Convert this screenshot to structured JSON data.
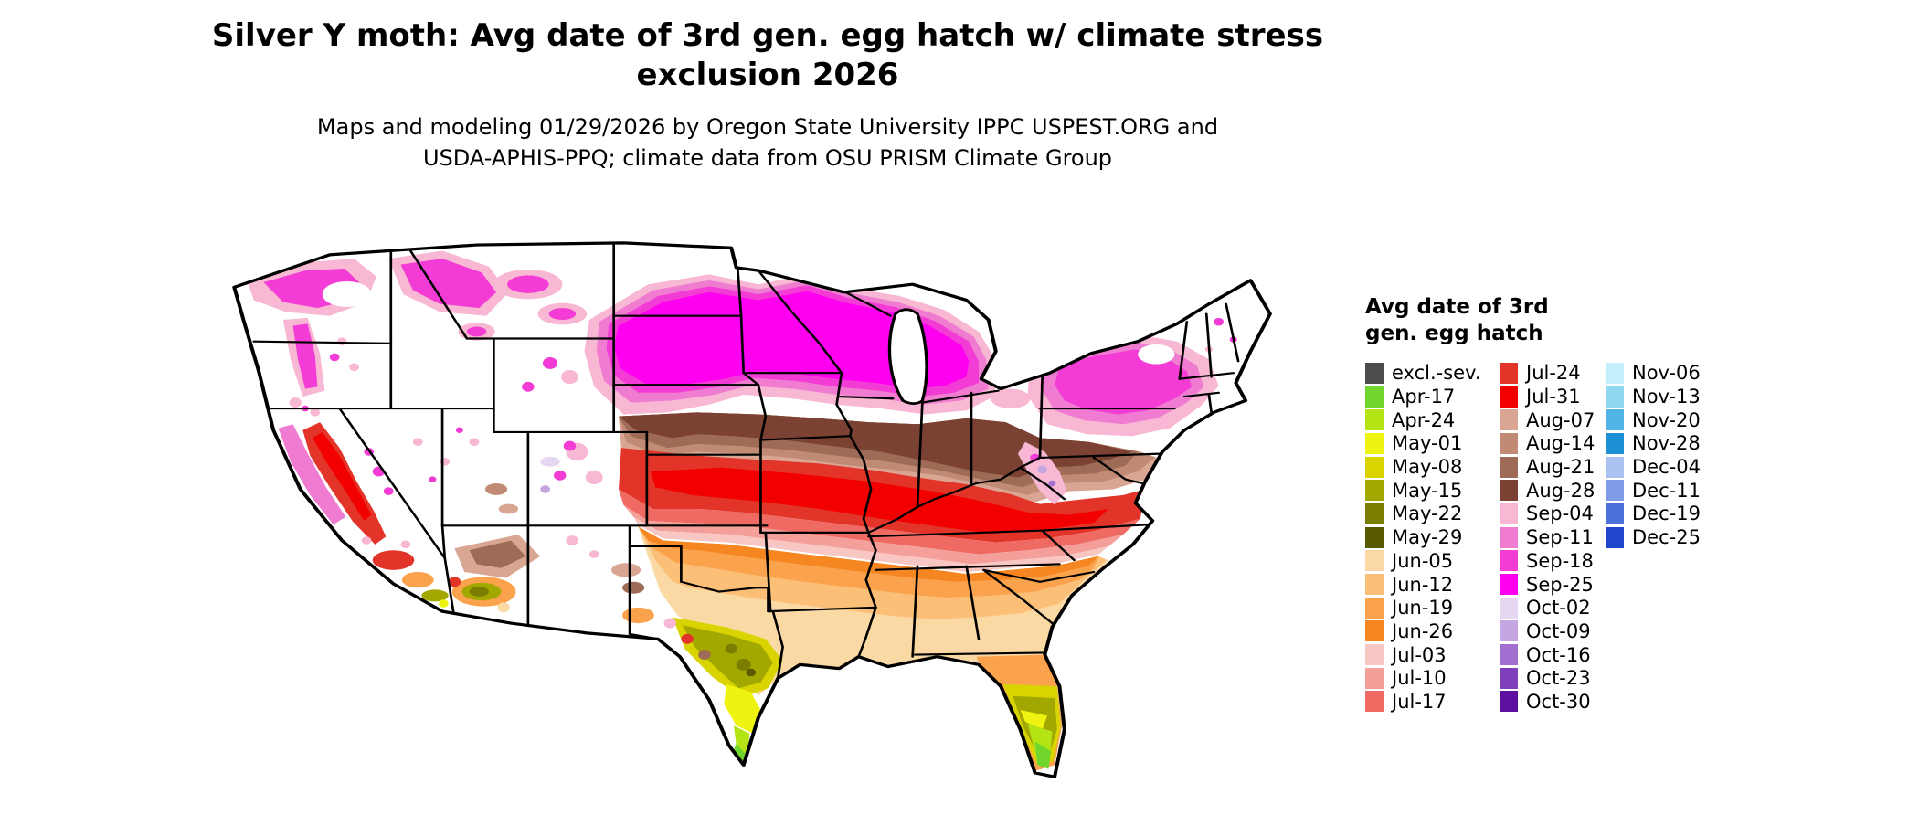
{
  "title": {
    "line1": "Silver Y moth: Avg date of 3rd gen. egg hatch w/ climate stress",
    "line2": "exclusion 2026"
  },
  "subtitle": {
    "line1": "Maps and modeling 01/29/2026 by Oregon State University IPPC USPEST.ORG and",
    "line2": "USDA-APHIS-PPQ; climate data from OSU PRISM Climate Group"
  },
  "legend": {
    "title_line1": "Avg date of 3rd",
    "title_line2": "gen. egg hatch",
    "columns": [
      [
        {
          "label": "excl.-sev.",
          "color": "#4d4d4d"
        },
        {
          "label": "Apr-17",
          "color": "#70d52c"
        },
        {
          "label": "Apr-24",
          "color": "#b5e414"
        },
        {
          "label": "May-01",
          "color": "#eff312"
        },
        {
          "label": "May-08",
          "color": "#d9d400"
        },
        {
          "label": "May-15",
          "color": "#a3a800"
        },
        {
          "label": "May-22",
          "color": "#7b7d00"
        },
        {
          "label": "May-29",
          "color": "#595900"
        },
        {
          "label": "Jun-05",
          "color": "#fbd9a4"
        },
        {
          "label": "Jun-12",
          "color": "#fcbf78"
        },
        {
          "label": "Jun-19",
          "color": "#fba24d"
        },
        {
          "label": "Jun-26",
          "color": "#f68622"
        },
        {
          "label": "Jul-03",
          "color": "#f8c7c3"
        },
        {
          "label": "Jul-10",
          "color": "#f59f9b"
        },
        {
          "label": "Jul-17",
          "color": "#ef6a63"
        }
      ],
      [
        {
          "label": "Jul-24",
          "color": "#e3342a"
        },
        {
          "label": "Jul-31",
          "color": "#f20000"
        },
        {
          "label": "Aug-07",
          "color": "#d9a693"
        },
        {
          "label": "Aug-14",
          "color": "#c18a74"
        },
        {
          "label": "Aug-21",
          "color": "#9d6b56"
        },
        {
          "label": "Aug-28",
          "color": "#7b4233"
        },
        {
          "label": "Sep-04",
          "color": "#f8b7d3"
        },
        {
          "label": "Sep-11",
          "color": "#f07cd1"
        },
        {
          "label": "Sep-18",
          "color": "#f23cd5"
        },
        {
          "label": "Sep-25",
          "color": "#fe00ef"
        },
        {
          "label": "Oct-02",
          "color": "#e5d7f1"
        },
        {
          "label": "Oct-09",
          "color": "#c5a6e2"
        },
        {
          "label": "Oct-16",
          "color": "#a26fd0"
        },
        {
          "label": "Oct-23",
          "color": "#7f3eba"
        },
        {
          "label": "Oct-30",
          "color": "#5d10a0"
        }
      ],
      [
        {
          "label": "Nov-06",
          "color": "#c3effa"
        },
        {
          "label": "Nov-13",
          "color": "#8ed8f1"
        },
        {
          "label": "Nov-20",
          "color": "#52b4e4"
        },
        {
          "label": "Nov-28",
          "color": "#1d90d3"
        },
        {
          "label": "Dec-04",
          "color": "#abc2f0"
        },
        {
          "label": "Dec-11",
          "color": "#7f9ce8"
        },
        {
          "label": "Dec-19",
          "color": "#4c71da"
        },
        {
          "label": "Dec-25",
          "color": "#2046cd"
        }
      ]
    ]
  }
}
